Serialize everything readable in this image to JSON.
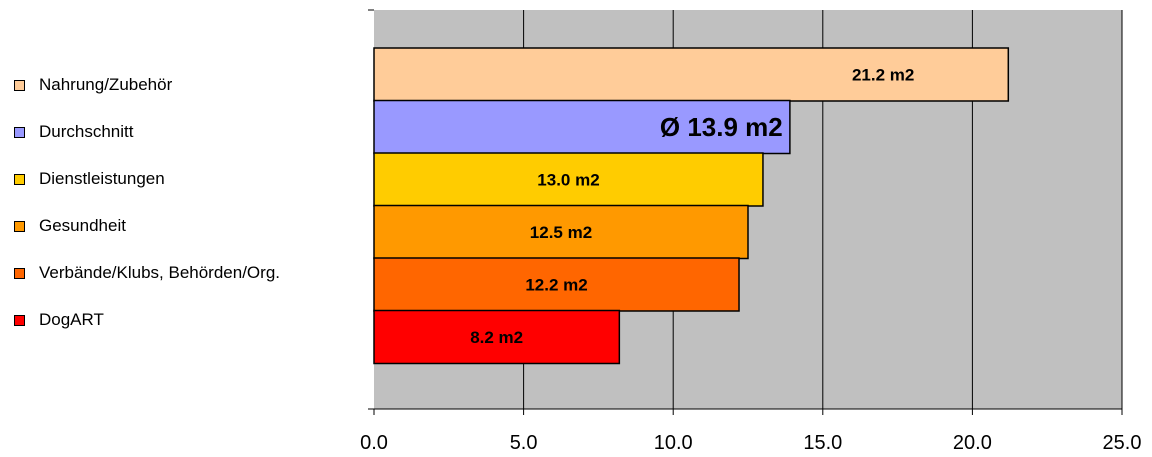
{
  "chart_data": {
    "type": "bar",
    "orientation": "horizontal",
    "categories": [
      "Nahrung/Zubehör",
      "Durchschnitt",
      "Dienstleistungen",
      "Gesundheit",
      "Verbände/Klubs, Behörden/Org.",
      "DogART"
    ],
    "values": [
      21.2,
      13.9,
      13.0,
      12.5,
      12.2,
      8.2
    ],
    "data_labels": [
      "21.2 m2",
      "Ø 13.9 m2",
      "13.0 m2",
      "12.5 m2",
      "12.2 m2",
      "8.2 m2"
    ],
    "colors": [
      "#FFCC99",
      "#9999FF",
      "#FFCC00",
      "#FF9900",
      "#FF6600",
      "#FF0000"
    ],
    "xlim": [
      0,
      25
    ],
    "x_ticks": [
      "0.0",
      "5.0",
      "10.0",
      "15.0",
      "20.0",
      "25.0"
    ],
    "grid": true,
    "plot_background": "#C0C0C0",
    "legend_position": "left"
  }
}
